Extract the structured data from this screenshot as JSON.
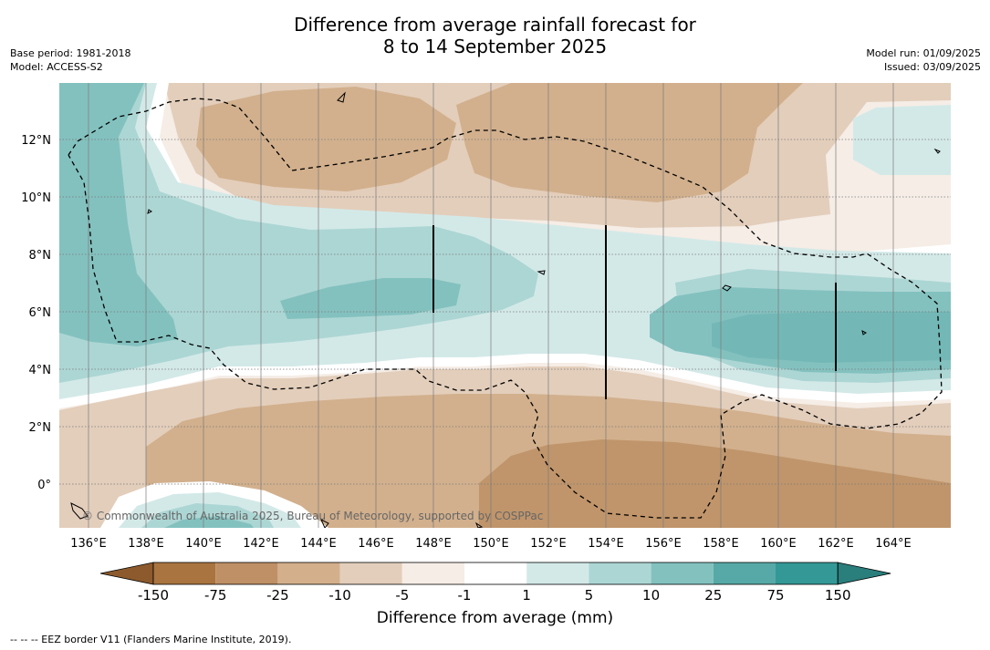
{
  "title": {
    "line1": "Difference from average rainfall forecast for",
    "line2": "8 to 14 September 2025"
  },
  "meta_left": {
    "base_period": "Base period: 1981-2018",
    "model": "Model: ACCESS-S2"
  },
  "meta_right": {
    "model_run": "Model run: 01/09/2025",
    "issued": "Issued: 03/09/2025"
  },
  "map": {
    "lon_ticks": [
      "136°E",
      "138°E",
      "140°E",
      "142°E",
      "144°E",
      "146°E",
      "148°E",
      "150°E",
      "152°E",
      "154°E",
      "156°E",
      "158°E",
      "160°E",
      "162°E",
      "164°E"
    ],
    "lat_ticks": [
      "12°N",
      "10°N",
      "8°N",
      "6°N",
      "4°N",
      "2°N",
      "0°"
    ],
    "copyright": "© Commonwealth of Australia 2025, Bureau of Meteorology, supported by COSPPac",
    "colors": {
      "dry_strong": "#c0956b",
      "dry_medium": "#d2b08d",
      "dry_light": "#e3cebb",
      "dry_faint": "#f5ede6",
      "neutral": "#ffffff",
      "wet_faint": "#d3e9e8",
      "wet_light": "#acd6d4",
      "wet_medium": "#83c1bf"
    }
  },
  "legend": {
    "title": "Difference from average (mm)",
    "labels": [
      "-150",
      "-75",
      "-25",
      "-10",
      "-5",
      "-1",
      "1",
      "5",
      "10",
      "25",
      "75",
      "150"
    ],
    "colors": [
      "#a97440",
      "#bf9066",
      "#d3af8b",
      "#e3cebb",
      "#f5ede6",
      "#ffffff",
      "#d3e9e8",
      "#acd6d4",
      "#83c1bf",
      "#57a9a7",
      "#349896"
    ],
    "end_low_color": "#8c5a2c",
    "end_high_color": "#2a7e7c"
  },
  "footnote": "-- -- -- EEZ border V11 (Flanders Marine Institute, 2019)."
}
